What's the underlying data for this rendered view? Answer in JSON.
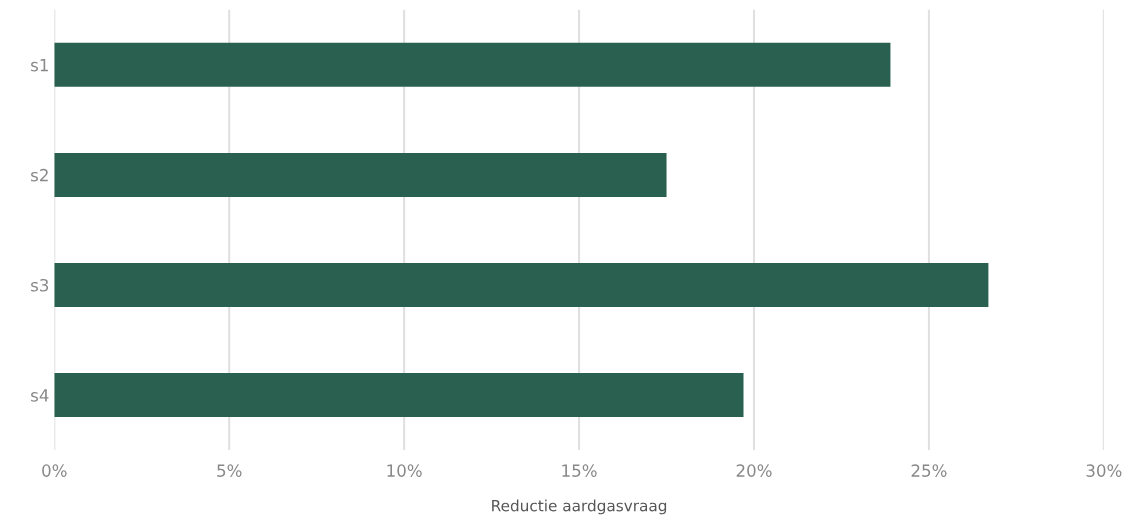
{
  "chart_data": {
    "type": "bar",
    "orientation": "horizontal",
    "xlabel": "Reductie aardgasvraag",
    "categories": [
      "s1",
      "s2",
      "s3",
      "s4"
    ],
    "values": [
      23.9,
      17.5,
      26.7,
      19.7
    ],
    "color": "#2a6050",
    "xlim": [
      0,
      30
    ],
    "xticks": [
      {
        "value": 0,
        "label": "0%"
      },
      {
        "value": 5,
        "label": "5%"
      },
      {
        "value": 10,
        "label": "10%"
      },
      {
        "value": 15,
        "label": "15%"
      },
      {
        "value": 20,
        "label": "20%"
      },
      {
        "value": 25,
        "label": "25%"
      },
      {
        "value": 30,
        "label": "30%"
      }
    ],
    "grid": "x",
    "legend": false
  }
}
